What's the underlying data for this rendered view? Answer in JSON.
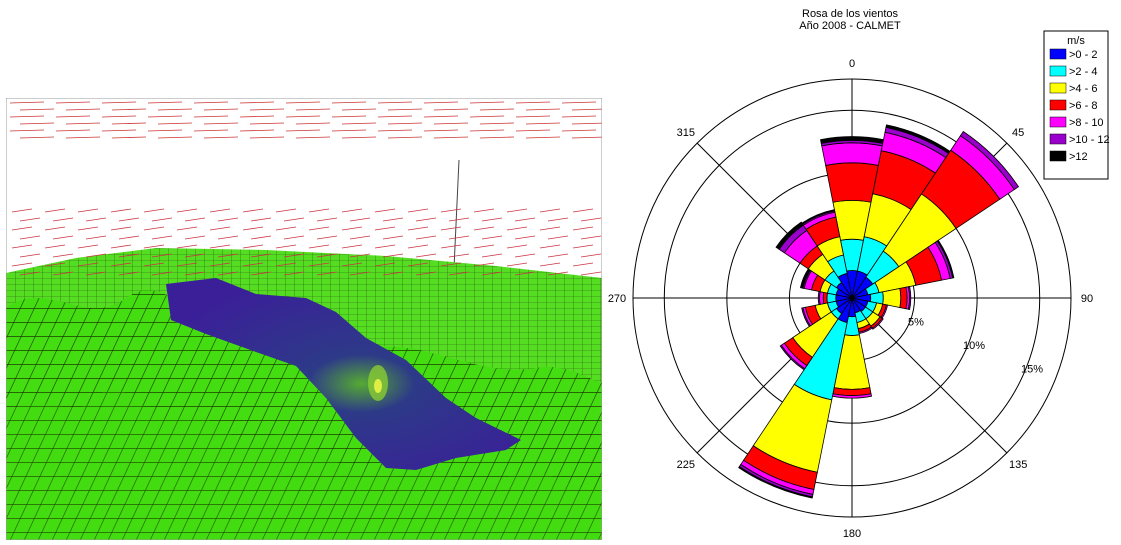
{
  "terrain_view": {
    "description_icon": "3d-terrain-wind-field-icon"
  },
  "chart_data": {
    "type": "polar-bar",
    "title": "Rosa de los vientos",
    "subtitle": "Año 2008 - CALMET",
    "direction_labels": [
      "0",
      "45",
      "90",
      "135",
      "180",
      "225",
      "270",
      "315"
    ],
    "radial_ticks": [
      5,
      10,
      15
    ],
    "radial_tick_labels": [
      "5%",
      "10%",
      "15%"
    ],
    "rmax": 17.5,
    "grid": true,
    "legend": {
      "title": "m/s",
      "placement": "top-right",
      "entries": [
        {
          "label": ">0 - 2",
          "color": "#0000ff"
        },
        {
          "label": ">2 - 4",
          "color": "#00ffff"
        },
        {
          "label": ">4 - 6",
          "color": "#ffff00"
        },
        {
          "label": ">6 - 8",
          "color": "#ff0000"
        },
        {
          "label": ">8 - 10",
          "color": "#ff00ff"
        },
        {
          "label": ">10 - 12",
          "color": "#9900cc"
        },
        {
          "label": ">12",
          "color": "#000000"
        }
      ]
    },
    "sectors": [
      {
        "direction": 0,
        "cumulative": [
          2.2,
          4.7,
          7.8,
          10.8,
          12.4,
          12.6,
          12.9
        ]
      },
      {
        "direction": 22.5,
        "cumulative": [
          2.2,
          5.0,
          8.5,
          12.0,
          13.5,
          13.9,
          14.1
        ]
      },
      {
        "direction": 45,
        "cumulative": [
          2.0,
          4.5,
          10.0,
          14.2,
          15.6,
          16.0,
          16.0
        ]
      },
      {
        "direction": 67.5,
        "cumulative": [
          1.3,
          2.2,
          5.2,
          7.3,
          8.0,
          8.2,
          8.3
        ]
      },
      {
        "direction": 90,
        "cumulative": [
          1.5,
          2.5,
          3.9,
          4.4,
          4.6,
          4.7,
          4.7
        ]
      },
      {
        "direction": 112.5,
        "cumulative": [
          1.3,
          2.0,
          2.5,
          2.8,
          2.9,
          2.9,
          2.9
        ]
      },
      {
        "direction": 135,
        "cumulative": [
          1.3,
          2.0,
          2.7,
          2.9,
          3.0,
          3.0,
          3.0
        ]
      },
      {
        "direction": 157.5,
        "cumulative": [
          1.2,
          2.0,
          2.5,
          2.8,
          2.9,
          2.9,
          2.9
        ]
      },
      {
        "direction": 180,
        "cumulative": [
          1.5,
          3.0,
          7.3,
          7.8,
          8.0,
          8.0,
          8.0
        ]
      },
      {
        "direction": 202.5,
        "cumulative": [
          2.0,
          8.3,
          14.2,
          15.6,
          16.0,
          16.2,
          16.3
        ]
      },
      {
        "direction": 225,
        "cumulative": [
          1.5,
          2.0,
          5.7,
          6.5,
          6.8,
          6.9,
          6.9
        ]
      },
      {
        "direction": 247.5,
        "cumulative": [
          1.3,
          2.0,
          3.0,
          3.8,
          4.0,
          4.1,
          4.1
        ]
      },
      {
        "direction": 270,
        "cumulative": [
          1.3,
          2.0,
          2.0,
          2.3,
          2.6,
          2.7,
          2.7
        ]
      },
      {
        "direction": 292.5,
        "cumulative": [
          1.3,
          2.0,
          2.6,
          3.3,
          3.9,
          4.0,
          4.2
        ]
      },
      {
        "direction": 315,
        "cumulative": [
          1.5,
          2.6,
          4.2,
          5.0,
          6.5,
          7.0,
          7.3
        ]
      },
      {
        "direction": 337.5,
        "cumulative": [
          2.0,
          3.5,
          5.0,
          6.6,
          7.0,
          7.1,
          7.2
        ]
      }
    ]
  }
}
